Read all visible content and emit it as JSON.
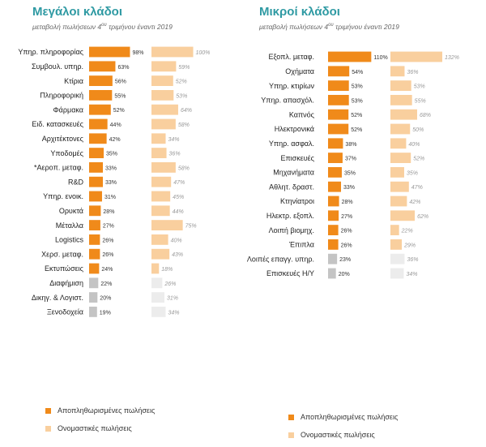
{
  "colors": {
    "orange": "#f08a1a",
    "peach": "#f9cf9e",
    "gray": "#c4c4c4",
    "lightgray": "#ececec",
    "title": "#2f9aa3"
  },
  "left": {
    "title": "Μεγάλοι κλάδοι",
    "subtitle_pre": "μεταβολή πωλήσεων 4",
    "subtitle_sup": "ου",
    "subtitle_post": " τριμήνου έναντι 2019",
    "legend": {
      "deflated": "Αποπληθωρισμένες πωλήσεις",
      "nominal": "Ονομαστικές πωλήσεις"
    }
  },
  "right": {
    "title": "Μικροί κλάδοι",
    "subtitle_pre": "μεταβολή πωλήσεων 4",
    "subtitle_sup": "ου",
    "subtitle_post": " τριμήνου έναντι 2019",
    "legend": {
      "deflated": "Αποπληθωρισμένες πωλήσεις",
      "nominal": "Ονομαστικές πωλήσεις"
    }
  },
  "chart_data": [
    {
      "type": "bar",
      "title": "Μεγάλοι κλάδοι",
      "subtitle": "μεταβολή πωλήσεων 4ου τριμήνου έναντι 2019",
      "orientation": "horizontal",
      "unit": "%",
      "categories": [
        "Υπηρ. πληροφορίας",
        "Συμβουλ. υπηρ.",
        "Κτίρια",
        "Πληροφορική",
        "Φάρμακα",
        "Ειδ. κατασκευές",
        "Αρχιτέκτονες",
        "Υποδομές",
        "*Αερoπ. μεταφ.",
        "R&D",
        "Υπηρ. ενοικ.",
        "Ορυκτά",
        "Μέταλλα",
        "Logistics",
        "Χερσ. μεταφ.",
        "Εκτυπώσεις",
        "Διαφήμιση",
        "Δικηγ. & Λογιστ.",
        "Ξενοδοχεία"
      ],
      "series": [
        {
          "name": "Αποπληθωρισμένες πωλήσεις",
          "values": [
            98,
            63,
            56,
            55,
            52,
            44,
            42,
            35,
            33,
            33,
            31,
            28,
            27,
            26,
            26,
            24,
            22,
            20,
            19
          ]
        },
        {
          "name": "Ονομαστικές πωλήσεις",
          "values": [
            100,
            59,
            52,
            53,
            64,
            58,
            34,
            36,
            58,
            47,
            45,
            44,
            75,
            40,
            43,
            18,
            26,
            31,
            34
          ]
        }
      ],
      "highlighted_count": 16,
      "legend_position": "bottom-left"
    },
    {
      "type": "bar",
      "title": "Μικροί κλάδοι",
      "subtitle": "μεταβολή πωλήσεων 4ου τριμήνου έναντι 2019",
      "orientation": "horizontal",
      "unit": "%",
      "categories": [
        "Εξοπλ. μεταφ.",
        "Οχήματα",
        "Υπηρ. κτιρίων",
        "Υπηρ. απασχόλ.",
        "Καπνός",
        "Ηλεκτρονικά",
        "Υπηρ. ασφαλ.",
        "Επισκευές",
        "Μηχανήματα",
        "Αθλητ. δραστ.",
        "Κτηνίατροι",
        "Ηλεκτρ. εξοπλ.",
        "Λοιπή βιομηχ.",
        "Έπιπλα",
        "Λοιπές επαγγ. υπηρ.",
        "Επισκευές Η/Υ"
      ],
      "series": [
        {
          "name": "Αποπληθωρισμένες πωλήσεις",
          "values": [
            110,
            54,
            53,
            53,
            52,
            52,
            38,
            37,
            35,
            33,
            28,
            27,
            26,
            26,
            23,
            20
          ]
        },
        {
          "name": "Ονομαστικές πωλήσεις",
          "values": [
            132,
            36,
            53,
            55,
            68,
            50,
            40,
            52,
            35,
            47,
            42,
            62,
            22,
            29,
            36,
            34
          ]
        }
      ],
      "highlighted_count": 14,
      "legend_position": "bottom-left"
    }
  ]
}
